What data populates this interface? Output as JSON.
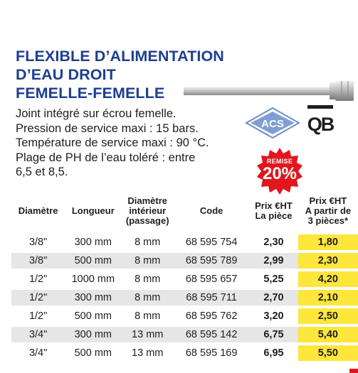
{
  "title": {
    "line1": "FLEXIBLE D’ALIMENTATION",
    "line2": "D’EAU DROIT",
    "line3": "FEMELLE-FEMELLE"
  },
  "description": [
    "Joint intégré sur écrou femelle.",
    "Pression de service maxi : 15 bars.",
    "Température de service maxi : 90 °C.",
    "Plage de PH de l’eau toléré : entre",
    "6,5 et 8,5."
  ],
  "logos": {
    "acs": "ACS",
    "qb": "QB"
  },
  "badge": {
    "label": "REMISE",
    "value": "20%"
  },
  "table": {
    "headers": {
      "diametre": "Diamètre",
      "longueur": "Longueur",
      "diam_int_1": "Diamètre",
      "diam_int_2": "intérieur",
      "diam_int_3": "(passage)",
      "code": "Code",
      "prix1_a": "Prix €HT",
      "prix1_b": "La pièce",
      "prix2_a": "Prix €HT",
      "prix2_b": "A partir de",
      "prix2_c": "3 pièces*"
    },
    "rows": [
      {
        "diametre": "3/8\"",
        "longueur": "300 mm",
        "interieur": "8 mm",
        "code": "68 595 754",
        "prix": "2,30",
        "prix3": "1,80"
      },
      {
        "diametre": "3/8\"",
        "longueur": "500 mm",
        "interieur": "8 mm",
        "code": "68 595 789",
        "prix": "2,99",
        "prix3": "2,30"
      },
      {
        "diametre": "1/2\"",
        "longueur": "1000 mm",
        "interieur": "8 mm",
        "code": "68 595 657",
        "prix": "5,25",
        "prix3": "4,20"
      },
      {
        "diametre": "1/2\"",
        "longueur": "300 mm",
        "interieur": "8 mm",
        "code": "68 595 711",
        "prix": "2,70",
        "prix3": "2,10"
      },
      {
        "diametre": "1/2\"",
        "longueur": "500 mm",
        "interieur": "8 mm",
        "code": "68 595 762",
        "prix": "3,20",
        "prix3": "2,50"
      },
      {
        "diametre": "3/4\"",
        "longueur": "300 mm",
        "interieur": "13 mm",
        "code": "68 595 142",
        "prix": "6,75",
        "prix3": "5,40"
      },
      {
        "diametre": "3/4\"",
        "longueur": "500 mm",
        "interieur": "13 mm",
        "code": "68 595 169",
        "prix": "6,95",
        "prix3": "5,50"
      }
    ]
  },
  "colors": {
    "title": "#1d3f8f",
    "price_highlight": "#ffe63a",
    "price_red": "#e3151e",
    "row_alt": "#e6e6e6"
  }
}
